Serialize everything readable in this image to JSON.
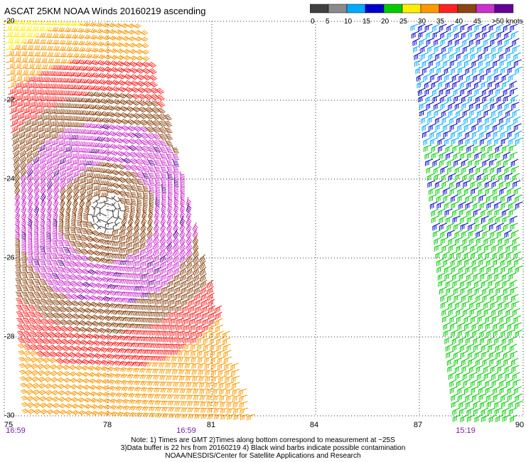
{
  "title": "ASCAT 25KM NOAA Winds 20160219 ascending",
  "legend": {
    "labels": [
      "0",
      "5",
      "10",
      "15",
      "20",
      "25",
      "30",
      "35",
      "40",
      "45",
      ">50 knots"
    ],
    "colors": [
      "#404040",
      "#8a8a8a",
      "#00aaff",
      "#0000cc",
      "#00cc00",
      "#ffee00",
      "#ff9900",
      "#ff2222",
      "#8b4513",
      "#cc33cc",
      "#660099"
    ]
  },
  "map": {
    "lon_ticks": [
      "75",
      "78",
      "81",
      "84",
      "87",
      "90"
    ],
    "lat_ticks": [
      "-20",
      "-22",
      "-24",
      "-26",
      "-28",
      "-30"
    ],
    "time_labels": [
      "16:59",
      "16:59",
      "15:19"
    ],
    "grid": "dotted"
  },
  "notes": [
    "Note: 1) Times are GMT 2)Times along bottom correspond to measurement at ~25S",
    "3)Data buffer is 22 hrs from 20160219 4) Black wind barbs indicate possible contamination",
    "NOAA/NESDIS/Center for Satellite Applications and Research"
  ]
}
